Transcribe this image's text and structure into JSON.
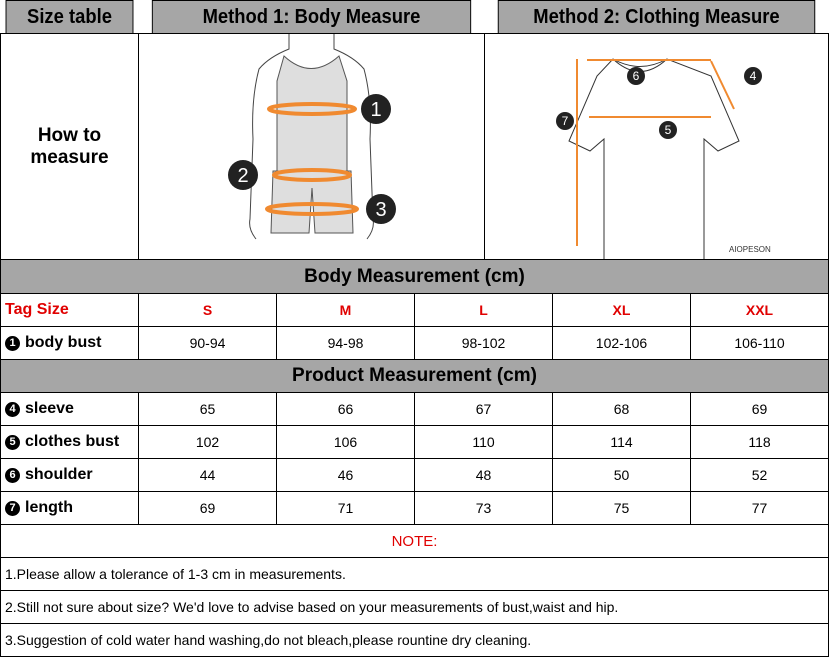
{
  "header": {
    "size_table": "Size table",
    "method1": "Method 1: Body  Measure",
    "method2": "Method 2: Clothing Measure"
  },
  "how_to": "How to measure",
  "illustration": {
    "body_markers": [
      "1",
      "2",
      "3"
    ],
    "clothing_markers": [
      "4",
      "5",
      "6",
      "7"
    ],
    "brand": "AIOPESON"
  },
  "body_section": "Body Measurement (cm)",
  "product_section": "Product Measurement (cm)",
  "tag_size_label": "Tag Size",
  "sizes": [
    "S",
    "M",
    "L",
    "XL",
    "XXL"
  ],
  "body_rows": [
    {
      "num": "1",
      "label": "body bust",
      "values": [
        "90-94",
        "94-98",
        "98-102",
        "102-106",
        "106-110"
      ]
    }
  ],
  "product_rows": [
    {
      "num": "4",
      "label": "sleeve",
      "values": [
        "65",
        "66",
        "67",
        "68",
        "69"
      ]
    },
    {
      "num": "5",
      "label": "clothes bust",
      "values": [
        "102",
        "106",
        "110",
        "114",
        "118"
      ]
    },
    {
      "num": "6",
      "label": "shoulder",
      "values": [
        "44",
        "46",
        "48",
        "50",
        "52"
      ]
    },
    {
      "num": "7",
      "label": "length",
      "values": [
        "69",
        "71",
        "73",
        "75",
        "77"
      ]
    }
  ],
  "note_title": "NOTE:",
  "notes": [
    "1.Please allow a tolerance of 1-3 cm in measurements.",
    "2.Still not sure about size? We'd love to advise based on your measurements of bust,waist and hip.",
    "3.Suggestion of cold water hand washing,do not bleach,please rountine dry cleaning."
  ],
  "colors": {
    "header_bg": "#a6a6a6",
    "accent_red": "#e00000",
    "measure_line": "#f08a30"
  }
}
